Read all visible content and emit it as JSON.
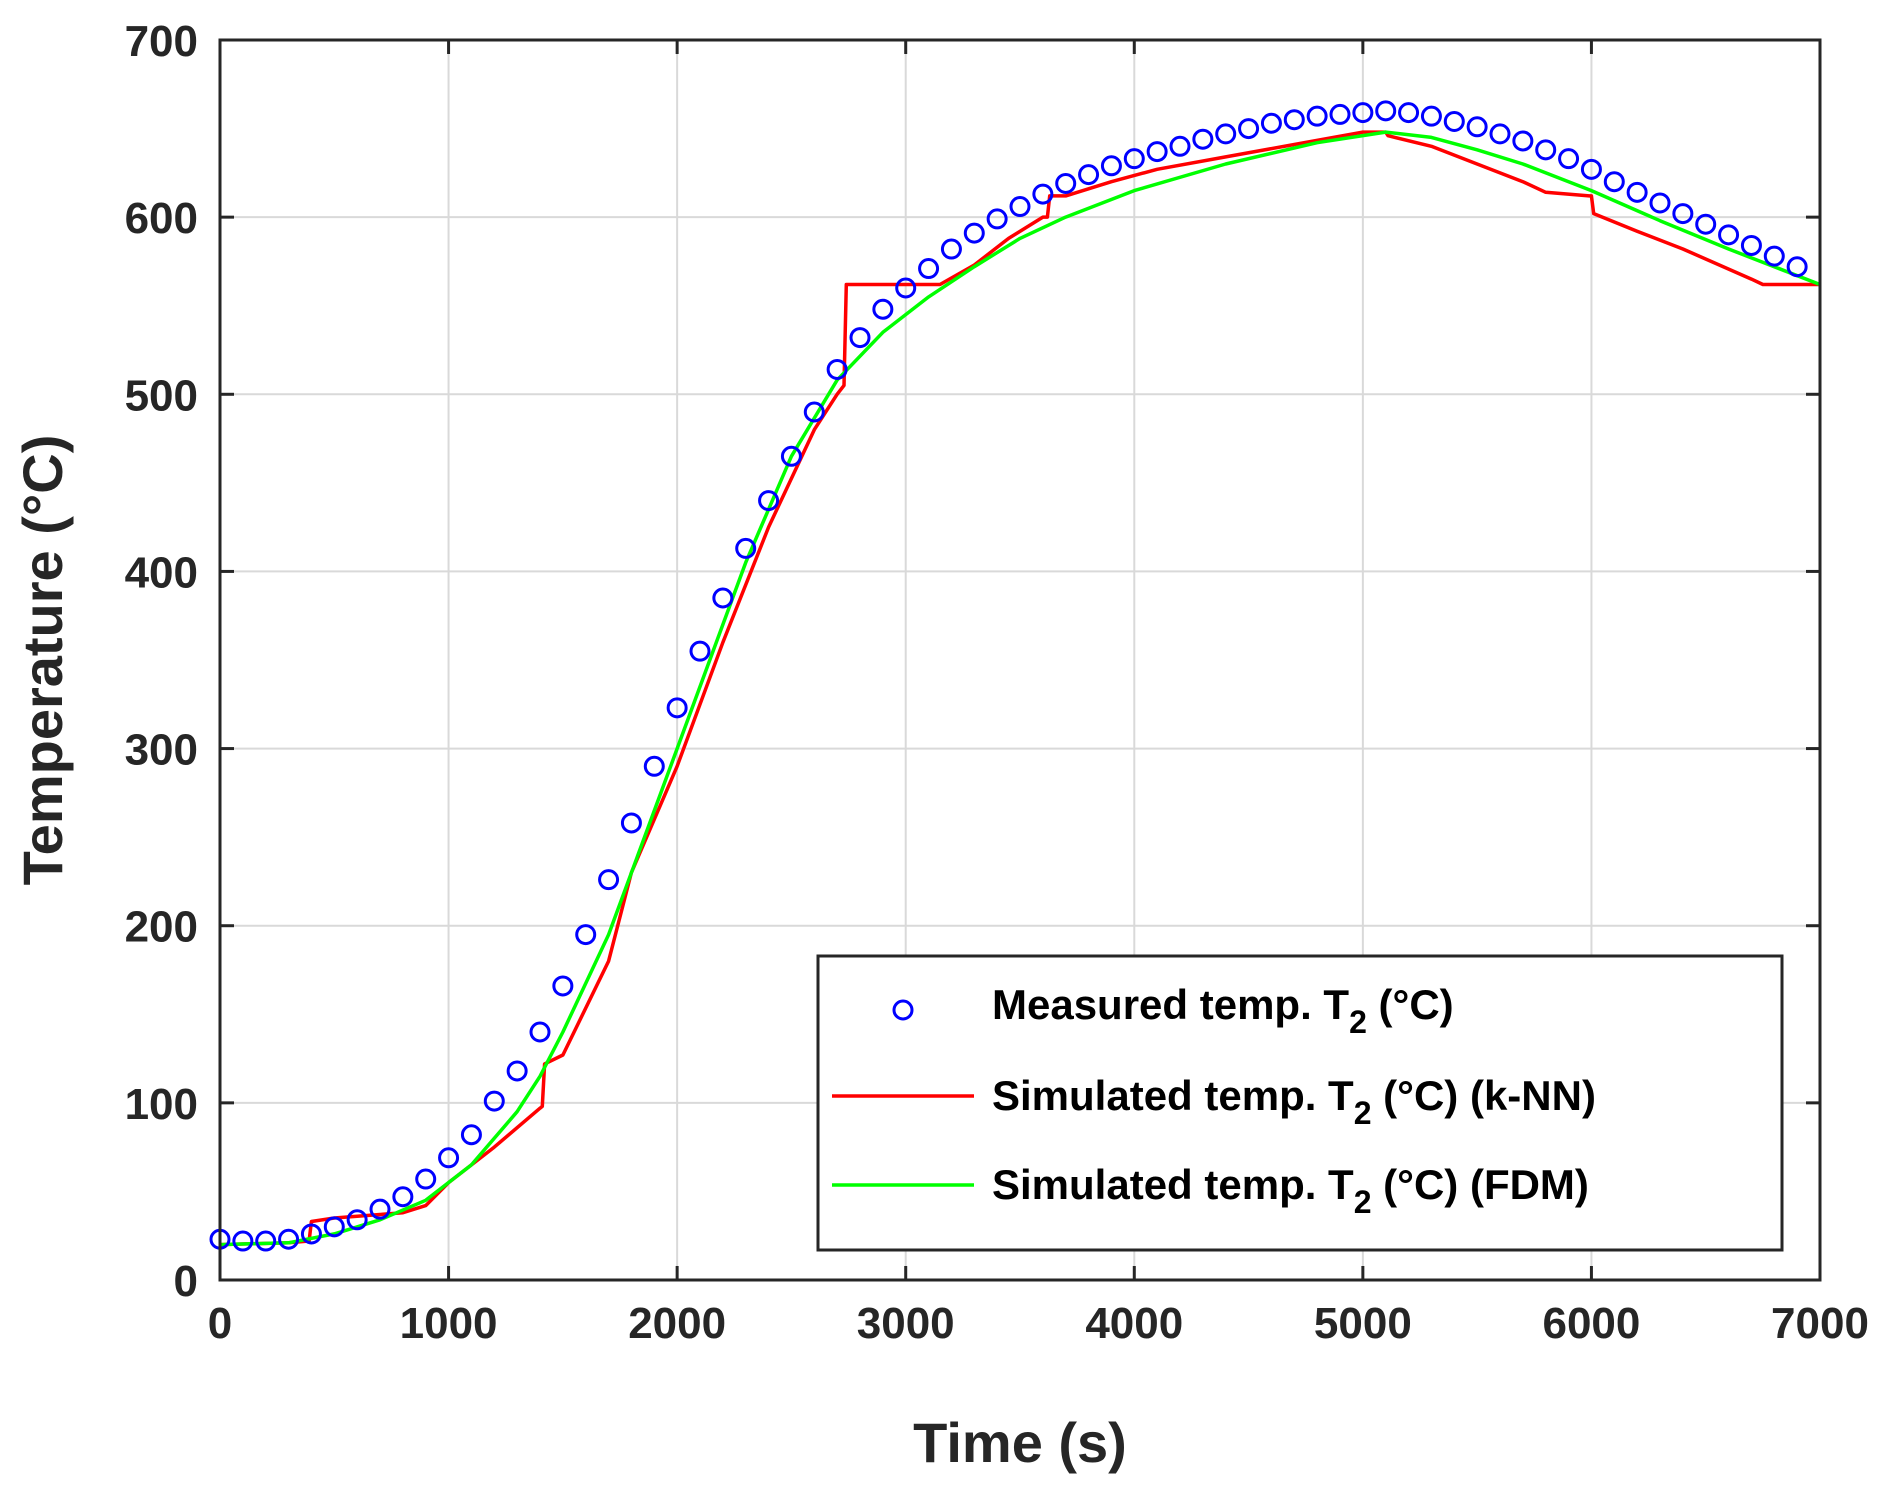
{
  "chart_data": {
    "type": "line",
    "title": "",
    "xlabel": "Time (s)",
    "ylabel": "Temperature (°C)",
    "xlim": [
      0,
      7000
    ],
    "ylim": [
      0,
      700
    ],
    "xticks": [
      "0",
      "1000",
      "2000",
      "3000",
      "4000",
      "5000",
      "6000",
      "7000"
    ],
    "yticks": [
      "0",
      "100",
      "200",
      "300",
      "400",
      "500",
      "600",
      "700"
    ],
    "grid": true,
    "legend_position": "bottom-right",
    "series": [
      {
        "name": "Measured temp. T2 (°C)",
        "legend_main": "Measured temp. T",
        "legend_sub": "2",
        "legend_tail": " (°C)",
        "style": "markers",
        "marker": "circle",
        "color": "#0000ff",
        "x": [
          0,
          100,
          200,
          300,
          400,
          500,
          600,
          700,
          800,
          900,
          1000,
          1100,
          1200,
          1300,
          1400,
          1500,
          1600,
          1700,
          1800,
          1900,
          2000,
          2100,
          2200,
          2300,
          2400,
          2500,
          2600,
          2700,
          2800,
          2900,
          3000,
          3100,
          3200,
          3300,
          3400,
          3500,
          3600,
          3700,
          3800,
          3900,
          4000,
          4100,
          4200,
          4300,
          4400,
          4500,
          4600,
          4700,
          4800,
          4900,
          5000,
          5100,
          5200,
          5300,
          5400,
          5500,
          5600,
          5700,
          5800,
          5900,
          6000,
          6100,
          6200,
          6300,
          6400,
          6500,
          6600,
          6700,
          6800,
          6900
        ],
        "y": [
          23,
          22,
          22,
          23,
          26,
          30,
          34,
          40,
          47,
          57,
          69,
          82,
          101,
          118,
          140,
          166,
          195,
          226,
          258,
          290,
          323,
          355,
          385,
          413,
          440,
          465,
          490,
          514,
          532,
          548,
          560,
          571,
          582,
          591,
          599,
          606,
          613,
          619,
          624,
          629,
          633,
          637,
          640,
          644,
          647,
          650,
          653,
          655,
          657,
          658,
          659,
          660,
          659,
          657,
          654,
          651,
          647,
          643,
          638,
          633,
          627,
          620,
          614,
          608,
          602,
          596,
          590,
          584,
          578,
          572
        ]
      },
      {
        "name": "Simulated temp. T2 (°C) (k-NN)",
        "legend_main": "Simulated temp. T",
        "legend_sub": "2",
        "legend_tail": " (°C) (k-NN)",
        "style": "line",
        "color": "#ff0000",
        "x": [
          0,
          300,
          390,
          400,
          500,
          700,
          800,
          900,
          1000,
          1200,
          1400,
          1410,
          1420,
          1500,
          1700,
          1800,
          2000,
          2200,
          2400,
          2600,
          2700,
          2730,
          2740,
          2800,
          3000,
          3150,
          3300,
          3450,
          3600,
          3620,
          3630,
          3700,
          3900,
          4100,
          4400,
          4700,
          5000,
          5100,
          5110,
          5300,
          5500,
          5700,
          5800,
          5990,
          6000,
          6010,
          6200,
          6400,
          6700,
          6750,
          7000
        ],
        "y": [
          20,
          21,
          22,
          33,
          35,
          37,
          38,
          42,
          55,
          75,
          97,
          98,
          122,
          127,
          180,
          230,
          290,
          360,
          425,
          480,
          500,
          505,
          562,
          562,
          562,
          562,
          573,
          588,
          600,
          600,
          612,
          612,
          620,
          627,
          634,
          641,
          648,
          648,
          646,
          640,
          630,
          620,
          614,
          612,
          612,
          602,
          592,
          582,
          565,
          562,
          562
        ]
      },
      {
        "name": "Simulated temp. T2 (°C) (FDM)",
        "legend_main": "Simulated temp. T",
        "legend_sub": "2",
        "legend_tail": " (°C) (FDM)",
        "style": "line",
        "color": "#00ff00",
        "x": [
          0,
          300,
          500,
          700,
          900,
          1100,
          1300,
          1400,
          1500,
          1700,
          1900,
          2100,
          2300,
          2500,
          2700,
          2900,
          3100,
          3300,
          3500,
          3700,
          4000,
          4400,
          4800,
          5100,
          5300,
          5500,
          5700,
          6000,
          6300,
          6600,
          7000
        ],
        "y": [
          20,
          21,
          26,
          34,
          45,
          65,
          95,
          115,
          140,
          195,
          265,
          335,
          405,
          465,
          508,
          535,
          555,
          572,
          588,
          600,
          615,
          630,
          642,
          648,
          645,
          638,
          630,
          615,
          598,
          582,
          562
        ]
      }
    ]
  }
}
